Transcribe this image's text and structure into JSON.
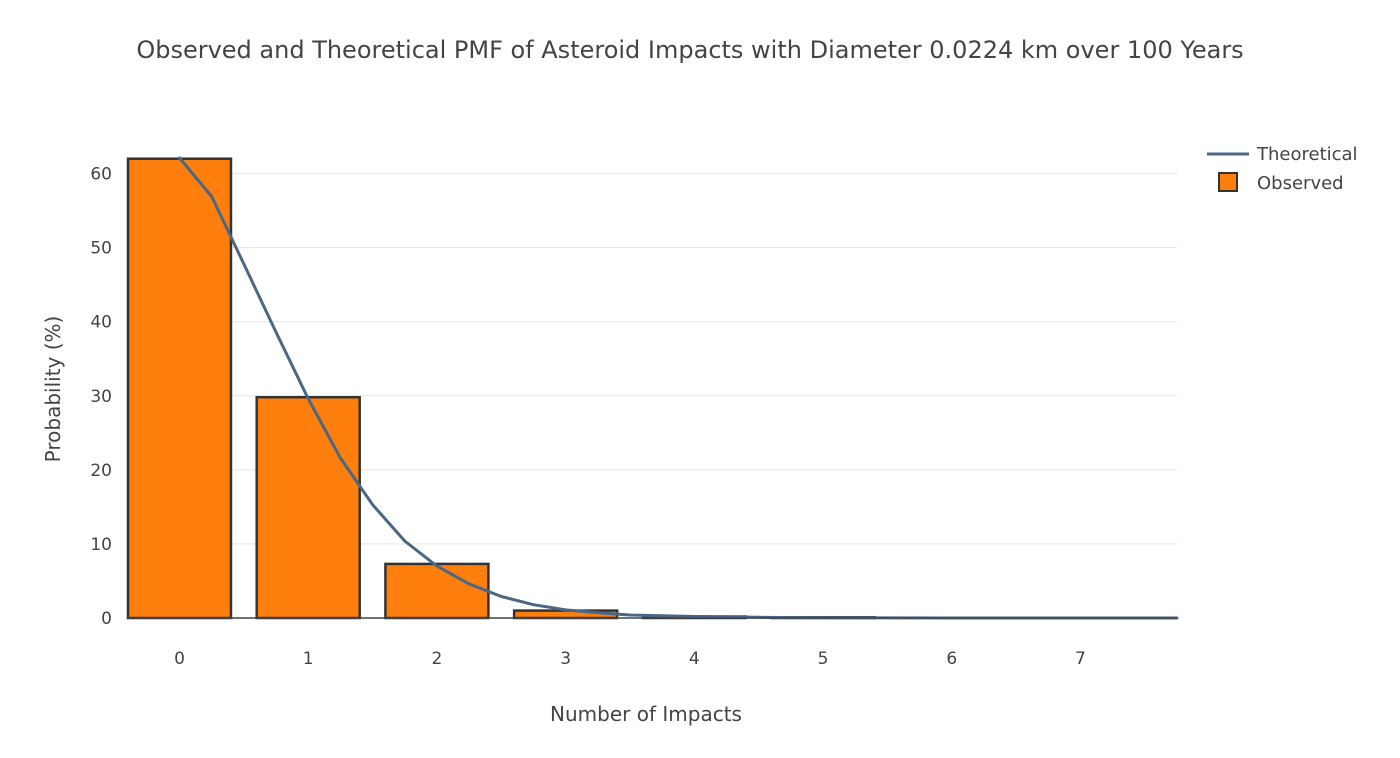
{
  "chart_data": {
    "type": "bar",
    "title": "Observed and Theoretical PMF of Asteroid Impacts with Diameter 0.0224 km over 100 Years",
    "xlabel": "Number of Impacts",
    "ylabel": "Probability (%)",
    "categories": [
      0,
      1,
      2,
      3,
      4,
      5,
      6,
      7
    ],
    "x_ticks": [
      "0",
      "1",
      "2",
      "3",
      "4",
      "5",
      "6",
      "7"
    ],
    "y_ticks": [
      "0",
      "10",
      "20",
      "30",
      "40",
      "50",
      "60"
    ],
    "xlim": [
      -0.4,
      7.75
    ],
    "ylim": [
      0,
      62.5
    ],
    "grid": true,
    "legend_position": "top-right",
    "series": [
      {
        "name": "Observed",
        "kind": "bar",
        "color": "#ff7f0e",
        "edge_color": "#333333",
        "x": [
          0,
          1,
          2,
          3,
          4,
          5,
          6,
          7
        ],
        "values": [
          62,
          29.8,
          7.3,
          1.0,
          0.2,
          0.1,
          0,
          0
        ]
      },
      {
        "name": "Theoretical",
        "kind": "line",
        "color": "#4a6785",
        "x": [
          0,
          0.25,
          0.5,
          0.75,
          1,
          1.25,
          1.5,
          1.75,
          2,
          2.25,
          2.5,
          2.75,
          3,
          3.25,
          3.5,
          3.75,
          4,
          4.5,
          5,
          5.5,
          6,
          6.5,
          7,
          7.5,
          7.75
        ],
        "values": [
          62.1,
          56.9,
          47.8,
          38.6,
          29.6,
          21.6,
          15.3,
          10.4,
          7.0,
          4.6,
          2.9,
          1.8,
          1.1,
          0.7,
          0.4,
          0.3,
          0.2,
          0.1,
          0.03,
          0.01,
          0.005,
          0.002,
          0.001,
          0.0005,
          0.0003
        ]
      }
    ]
  }
}
